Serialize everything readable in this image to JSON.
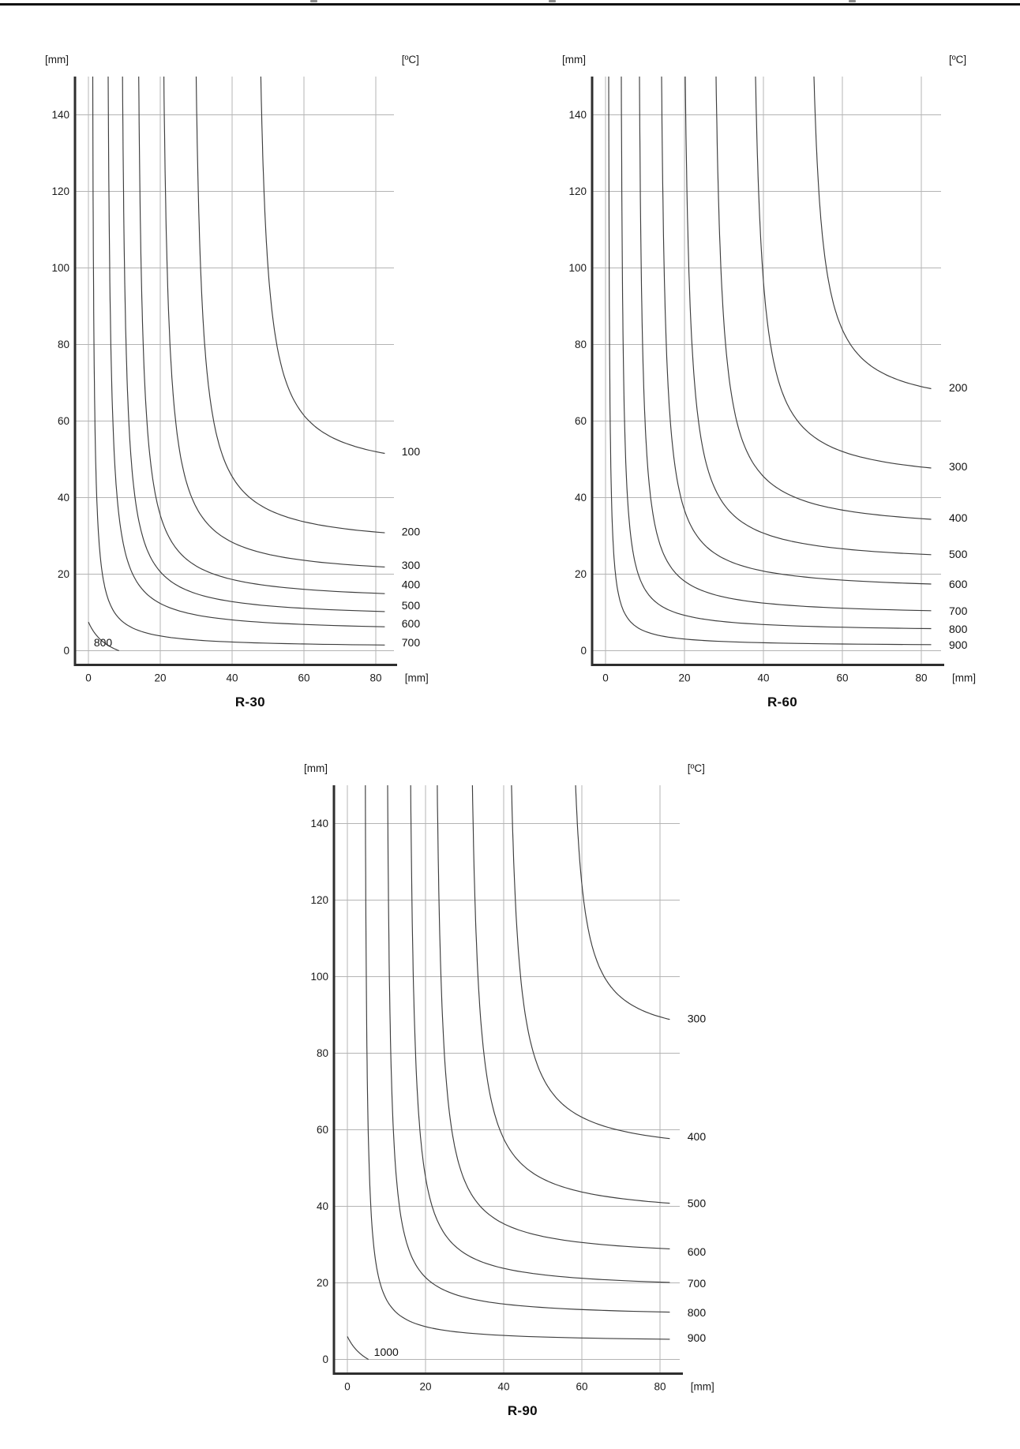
{
  "page_header": {
    "rule_visible": true
  },
  "chart_data": [
    {
      "type": "contour",
      "id": "R-30",
      "title": "R-30",
      "x_axis": {
        "unit": "[mm]",
        "ticks": [
          0,
          20,
          40,
          60,
          80
        ],
        "range": [
          0,
          85
        ]
      },
      "y_axis": {
        "unit": "[mm]",
        "ticks": [
          0,
          20,
          40,
          60,
          80,
          100,
          120,
          140
        ],
        "range": [
          0,
          150
        ]
      },
      "contour_unit": "[ºC]",
      "grid": true,
      "legend_position": "right-of-plot",
      "isotherms_c": [
        {
          "label": "100",
          "temp_c": 100,
          "top_anchor_mm": [
            48,
            150
          ],
          "right_anchor_mm": [
            80,
            52
          ],
          "tightness": 2.2,
          "label_y_mm": 52
        },
        {
          "label": "200",
          "temp_c": 200,
          "top_anchor_mm": [
            30,
            150
          ],
          "right_anchor_mm": [
            80,
            31
          ],
          "tightness": 1.8,
          "label_y_mm": 31
        },
        {
          "label": "300",
          "temp_c": 300,
          "top_anchor_mm": [
            21,
            150
          ],
          "right_anchor_mm": [
            80,
            22
          ],
          "tightness": 1.5,
          "label_y_mm": 22.3
        },
        {
          "label": "400",
          "temp_c": 400,
          "top_anchor_mm": [
            14,
            150
          ],
          "right_anchor_mm": [
            80,
            15
          ],
          "tightness": 1.2,
          "label_y_mm": 17.2
        },
        {
          "label": "500",
          "temp_c": 500,
          "top_anchor_mm": [
            9.5,
            150
          ],
          "right_anchor_mm": [
            80,
            10.3
          ],
          "tightness": 1.0,
          "label_y_mm": 11.8
        },
        {
          "label": "600",
          "temp_c": 600,
          "top_anchor_mm": [
            5.5,
            150
          ],
          "right_anchor_mm": [
            80,
            6.3
          ],
          "tightness": 0.8,
          "label_y_mm": 7.0
        },
        {
          "label": "700",
          "temp_c": 700,
          "top_anchor_mm": [
            1.2,
            150
          ],
          "right_anchor_mm": [
            80,
            1.5
          ],
          "tightness": 0.4,
          "label_y_mm": 2.1
        },
        {
          "label": "800",
          "temp_c": 800,
          "axis_intercepts_mm": {
            "y": 7.5,
            "x": 8.5
          },
          "tightness": 6,
          "inline_label_mm": [
            1.5,
            2.2
          ]
        }
      ]
    },
    {
      "type": "contour",
      "id": "R-60",
      "title": "R-60",
      "x_axis": {
        "unit": "[mm]",
        "ticks": [
          0,
          20,
          40,
          60,
          80
        ],
        "range": [
          0,
          85
        ]
      },
      "y_axis": {
        "unit": "[mm]",
        "ticks": [
          0,
          20,
          40,
          60,
          80,
          100,
          120,
          140
        ],
        "range": [
          0,
          150
        ]
      },
      "contour_unit": "[ºC]",
      "grid": true,
      "legend_position": "right-of-plot",
      "isotherms_c": [
        {
          "label": "200",
          "temp_c": 200,
          "top_anchor_mm": [
            52.8,
            150
          ],
          "right_anchor_mm": [
            80,
            69
          ],
          "tightness": 2.4,
          "label_y_mm": 68.7
        },
        {
          "label": "300",
          "temp_c": 300,
          "top_anchor_mm": [
            38,
            150
          ],
          "right_anchor_mm": [
            80,
            48
          ],
          "tightness": 2.0,
          "label_y_mm": 48
        },
        {
          "label": "400",
          "temp_c": 400,
          "top_anchor_mm": [
            28,
            150
          ],
          "right_anchor_mm": [
            80,
            34.5
          ],
          "tightness": 1.7,
          "label_y_mm": 34.6
        },
        {
          "label": "500",
          "temp_c": 500,
          "top_anchor_mm": [
            20.2,
            150
          ],
          "right_anchor_mm": [
            80,
            25.2
          ],
          "tightness": 1.4,
          "label_y_mm": 25.2
        },
        {
          "label": "600",
          "temp_c": 600,
          "top_anchor_mm": [
            14.2,
            150
          ],
          "right_anchor_mm": [
            80,
            17.5
          ],
          "tightness": 1.1,
          "label_y_mm": 17.3
        },
        {
          "label": "700",
          "temp_c": 700,
          "top_anchor_mm": [
            8.6,
            150
          ],
          "right_anchor_mm": [
            80,
            10.5
          ],
          "tightness": 0.8,
          "label_y_mm": 10.3
        },
        {
          "label": "800",
          "temp_c": 800,
          "top_anchor_mm": [
            4.0,
            150
          ],
          "right_anchor_mm": [
            80,
            5.8
          ],
          "tightness": 0.5,
          "label_y_mm": 5.6
        },
        {
          "label": "900",
          "temp_c": 900,
          "top_anchor_mm": [
            0.8,
            150
          ],
          "right_anchor_mm": [
            80,
            1.6
          ],
          "tightness": 0.25,
          "label_y_mm": 1.4
        }
      ]
    },
    {
      "type": "contour",
      "id": "R-90",
      "title": "R-90",
      "x_axis": {
        "unit": "[mm]",
        "ticks": [
          0,
          20,
          40,
          60,
          80
        ],
        "range": [
          0,
          85
        ]
      },
      "y_axis": {
        "unit": "[mm]",
        "ticks": [
          0,
          20,
          40,
          60,
          80,
          100,
          120,
          140
        ],
        "range": [
          0,
          150
        ]
      },
      "contour_unit": "[ºC]",
      "grid": true,
      "legend_position": "right-of-plot",
      "isotherms_c": [
        {
          "label": "300",
          "temp_c": 300,
          "top_anchor_mm": [
            58.4,
            150
          ],
          "right_anchor_mm": [
            80,
            89.5
          ],
          "tightness": 2.6,
          "label_y_mm": 89
        },
        {
          "label": "400",
          "temp_c": 400,
          "top_anchor_mm": [
            42,
            150
          ],
          "right_anchor_mm": [
            80,
            58
          ],
          "tightness": 2.2,
          "label_y_mm": 58.1
        },
        {
          "label": "500",
          "temp_c": 500,
          "top_anchor_mm": [
            32,
            150
          ],
          "right_anchor_mm": [
            80,
            41
          ],
          "tightness": 1.8,
          "label_y_mm": 40.7
        },
        {
          "label": "600",
          "temp_c": 600,
          "top_anchor_mm": [
            23,
            150
          ],
          "right_anchor_mm": [
            80,
            29
          ],
          "tightness": 1.4,
          "label_y_mm": 28
        },
        {
          "label": "700",
          "temp_c": 700,
          "top_anchor_mm": [
            16.2,
            150
          ],
          "right_anchor_mm": [
            80,
            20.2
          ],
          "tightness": 1.1,
          "label_y_mm": 19.8
        },
        {
          "label": "800",
          "temp_c": 800,
          "top_anchor_mm": [
            10.3,
            150
          ],
          "right_anchor_mm": [
            80,
            12.4
          ],
          "tightness": 0.8,
          "label_y_mm": 12.2
        },
        {
          "label": "900",
          "temp_c": 900,
          "top_anchor_mm": [
            4.6,
            150
          ],
          "right_anchor_mm": [
            80,
            5.3
          ],
          "tightness": 0.45,
          "label_y_mm": 5.6
        },
        {
          "label": "1000",
          "temp_c": 1000,
          "axis_intercepts_mm": {
            "y": 6.0,
            "x": 5.4
          },
          "tightness": 6,
          "inline_label_mm": [
            6.8,
            2.0
          ]
        }
      ]
    }
  ]
}
